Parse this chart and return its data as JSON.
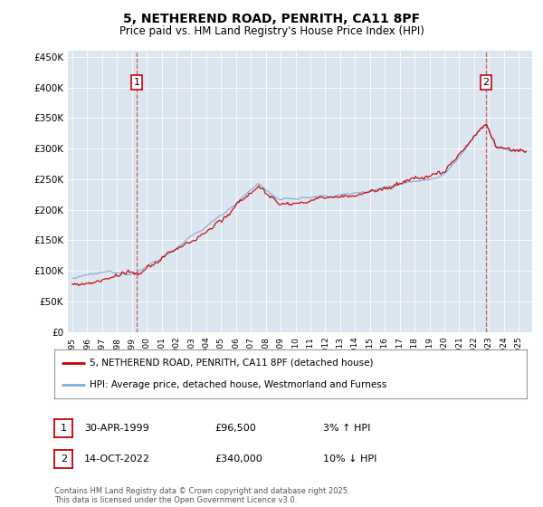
{
  "title": "5, NETHEREND ROAD, PENRITH, CA11 8PF",
  "subtitle": "Price paid vs. HM Land Registry's House Price Index (HPI)",
  "ylim": [
    0,
    460000
  ],
  "yticks": [
    0,
    50000,
    100000,
    150000,
    200000,
    250000,
    300000,
    350000,
    400000,
    450000
  ],
  "ytick_labels": [
    "£0",
    "£50K",
    "£100K",
    "£150K",
    "£200K",
    "£250K",
    "£300K",
    "£350K",
    "£400K",
    "£450K"
  ],
  "background_color": "#dce6f1",
  "line1_color": "#cc0000",
  "line2_color": "#7fb0d5",
  "marker1_year": 1999.33,
  "marker2_year": 2022.79,
  "legend_line1": "5, NETHEREND ROAD, PENRITH, CA11 8PF (detached house)",
  "legend_line2": "HPI: Average price, detached house, Westmorland and Furness",
  "annotation1_date": "30-APR-1999",
  "annotation1_price": "£96,500",
  "annotation1_hpi": "3% ↑ HPI",
  "annotation2_date": "14-OCT-2022",
  "annotation2_price": "£340,000",
  "annotation2_hpi": "10% ↓ HPI",
  "footnote": "Contains HM Land Registry data © Crown copyright and database right 2025.\nThis data is licensed under the Open Government Licence v3.0."
}
